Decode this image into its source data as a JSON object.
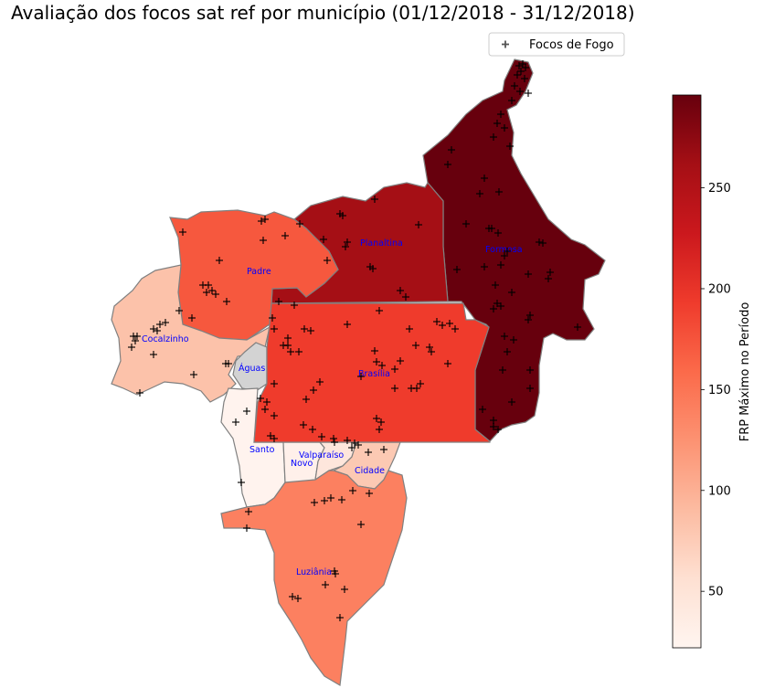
{
  "title": "Avaliação dos focos sat ref por município (01/12/2018 - 31/12/2018)",
  "legend": {
    "marker": "plus-icon",
    "label": "Focos de Fogo"
  },
  "colorbar": {
    "label": "FRP Máximo no Período",
    "min": 22,
    "max": 296,
    "ticks": [
      "50",
      "100",
      "150",
      "200",
      "250"
    ],
    "colors": [
      "#fff5f0",
      "#fee0d2",
      "#fcbba1",
      "#fc9272",
      "#fb6a4a",
      "#ef3b2c",
      "#cb181d",
      "#a50f15",
      "#67000d"
    ]
  },
  "chart_data": {
    "type": "choropleth",
    "title": "Avaliação dos focos sat ref por município (01/12/2018 - 31/12/2018)",
    "value_label": "FRP Máximo no Período",
    "range": [
      22,
      296
    ],
    "series_name": "Focos de Fogo",
    "municipalities": [
      {
        "id": "formosa",
        "label": "Formosa",
        "frp": 296,
        "fill": "#67000d"
      },
      {
        "id": "planaltina",
        "label": "Planaltina",
        "frp": 250,
        "fill": "#a50f15"
      },
      {
        "id": "brasilia",
        "label": "Brasília",
        "frp": 190,
        "fill": "#ef3b2c"
      },
      {
        "id": "padre",
        "label": "Padre",
        "frp": 166,
        "fill": "#f6583e"
      },
      {
        "id": "luziania",
        "label": "Luziânia",
        "frp": 135,
        "fill": "#fc8060"
      },
      {
        "id": "cocalzinho",
        "label": "Cocalzinho",
        "frp": 85,
        "fill": "#fcc2aa"
      },
      {
        "id": "cidade",
        "label": "Cidade",
        "frp": 80,
        "fill": "#fcc9b3"
      },
      {
        "id": "valparaiso",
        "label": "Valparaíso",
        "frp": 60,
        "fill": "#fee6dc"
      },
      {
        "id": "novo",
        "label": "Novo",
        "frp": 35,
        "fill": "#fff0ea"
      },
      {
        "id": "santo",
        "label": "Santo",
        "frp": 30,
        "fill": "#fff3ee"
      },
      {
        "id": "aguas",
        "label": "Águas",
        "frp": null,
        "fill": "#d3d3d3"
      }
    ]
  }
}
